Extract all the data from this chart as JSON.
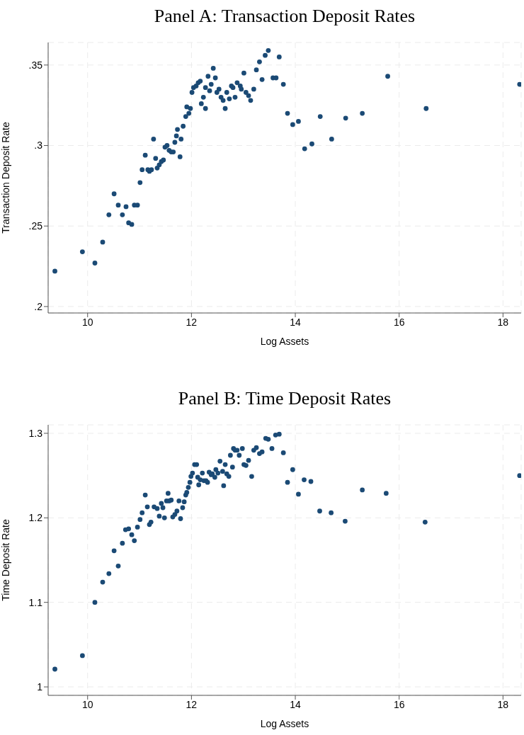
{
  "chart_data": [
    {
      "type": "scatter",
      "title": "Panel A: Transaction Deposit Rates",
      "xlabel": "Log Assets",
      "ylabel": "Transaction Deposit Rate",
      "grid": true,
      "marker": "circle",
      "xlim": [
        9.24,
        18.35
      ],
      "xticks": [
        10,
        12,
        14,
        16,
        18
      ],
      "ylim": [
        0.196,
        0.364
      ],
      "yticks": [
        {
          "value": 0.2,
          "label": ".2"
        },
        {
          "value": 0.25,
          "label": ".25"
        },
        {
          "value": 0.3,
          "label": ".3"
        },
        {
          "value": 0.35,
          "label": ".35"
        }
      ],
      "x": [
        9.37,
        9.9,
        10.14,
        10.29,
        10.41,
        10.51,
        10.59,
        10.67,
        10.74,
        10.79,
        10.85,
        10.9,
        10.96,
        11.01,
        11.05,
        11.11,
        11.16,
        11.19,
        11.23,
        11.27,
        11.31,
        11.34,
        11.38,
        11.42,
        11.46,
        11.49,
        11.53,
        11.57,
        11.61,
        11.65,
        11.68,
        11.71,
        11.73,
        11.78,
        11.8,
        11.84,
        11.89,
        11.91,
        11.95,
        11.98,
        12.01,
        12.04,
        12.09,
        12.13,
        12.17,
        12.19,
        12.23,
        12.27,
        12.27,
        12.32,
        12.35,
        12.38,
        12.42,
        12.46,
        12.49,
        12.53,
        12.57,
        12.61,
        12.65,
        12.68,
        12.73,
        12.77,
        12.8,
        12.84,
        12.88,
        12.94,
        12.96,
        13.01,
        13.05,
        13.1,
        13.14,
        13.2,
        13.25,
        13.31,
        13.36,
        13.42,
        13.48,
        13.57,
        13.63,
        13.69,
        13.77,
        13.85,
        13.95,
        14.06,
        14.18,
        14.32,
        14.48,
        14.7,
        14.97,
        15.29,
        15.78,
        16.52,
        18.32
      ],
      "series": [
        {
          "color": "#1b4a75",
          "values": [
            0.222,
            0.234,
            0.227,
            0.24,
            0.257,
            0.27,
            0.263,
            0.257,
            0.262,
            0.252,
            0.251,
            0.263,
            0.263,
            0.277,
            0.285,
            0.294,
            0.285,
            0.284,
            0.285,
            0.304,
            0.292,
            0.286,
            0.288,
            0.29,
            0.291,
            0.299,
            0.3,
            0.297,
            0.296,
            0.296,
            0.302,
            0.306,
            0.31,
            0.293,
            0.304,
            0.312,
            0.318,
            0.324,
            0.32,
            0.323,
            0.333,
            0.336,
            0.337,
            0.339,
            0.34,
            0.326,
            0.33,
            0.323,
            0.336,
            0.343,
            0.334,
            0.338,
            0.348,
            0.342,
            0.333,
            0.335,
            0.33,
            0.328,
            0.323,
            0.333,
            0.329,
            0.337,
            0.336,
            0.33,
            0.339,
            0.337,
            0.335,
            0.345,
            0.333,
            0.331,
            0.328,
            0.335,
            0.347,
            0.352,
            0.341,
            0.356,
            0.359,
            0.342,
            0.342,
            0.355,
            0.338,
            0.32,
            0.313,
            0.315,
            0.298,
            0.301,
            0.318,
            0.304,
            0.317,
            0.32,
            0.343,
            0.323,
            0.338
          ]
        }
      ]
    },
    {
      "type": "scatter",
      "title": "Panel B: Time Deposit Rates",
      "xlabel": "Log Assets",
      "ylabel": "Time Deposit Rate",
      "grid": true,
      "marker": "circle",
      "xlim": [
        9.24,
        18.35
      ],
      "xticks": [
        10,
        12,
        14,
        16,
        18
      ],
      "ylim": [
        0.99,
        1.31
      ],
      "yticks": [
        1,
        1.1,
        1.2,
        1.3
      ],
      "x": [
        9.37,
        9.9,
        10.14,
        10.29,
        10.41,
        10.51,
        10.59,
        10.67,
        10.73,
        10.79,
        10.85,
        10.9,
        10.96,
        11.01,
        11.05,
        11.11,
        11.15,
        11.19,
        11.22,
        11.28,
        11.34,
        11.38,
        11.42,
        11.45,
        11.48,
        11.52,
        11.55,
        11.57,
        11.61,
        11.64,
        11.68,
        11.72,
        11.76,
        11.79,
        11.83,
        11.86,
        11.89,
        11.91,
        11.94,
        11.97,
        11.99,
        12.02,
        12.06,
        12.1,
        12.12,
        12.14,
        12.17,
        12.21,
        12.24,
        12.28,
        12.31,
        12.34,
        12.38,
        12.4,
        12.45,
        12.47,
        12.51,
        12.55,
        12.6,
        12.62,
        12.65,
        12.68,
        12.72,
        12.75,
        12.79,
        12.81,
        12.84,
        12.88,
        12.92,
        12.98,
        13.01,
        13.05,
        13.1,
        13.16,
        13.2,
        13.25,
        13.31,
        13.36,
        13.43,
        13.48,
        13.55,
        13.62,
        13.69,
        13.77,
        13.85,
        13.95,
        14.06,
        14.17,
        14.3,
        14.47,
        14.69,
        14.96,
        15.29,
        15.75,
        16.5,
        18.32
      ],
      "series": [
        {
          "color": "#1b4a75",
          "values": [
            1.021,
            1.037,
            1.1,
            1.124,
            1.134,
            1.161,
            1.143,
            1.17,
            1.186,
            1.187,
            1.18,
            1.173,
            1.189,
            1.198,
            1.206,
            1.227,
            1.213,
            1.192,
            1.195,
            1.213,
            1.211,
            1.202,
            1.217,
            1.212,
            1.2,
            1.22,
            1.229,
            1.22,
            1.221,
            1.201,
            1.204,
            1.208,
            1.22,
            1.199,
            1.212,
            1.219,
            1.227,
            1.23,
            1.236,
            1.242,
            1.249,
            1.253,
            1.263,
            1.263,
            1.248,
            1.239,
            1.245,
            1.253,
            1.244,
            1.244,
            1.242,
            1.254,
            1.251,
            1.252,
            1.248,
            1.257,
            1.253,
            1.267,
            1.255,
            1.238,
            1.263,
            1.252,
            1.249,
            1.274,
            1.26,
            1.282,
            1.28,
            1.28,
            1.274,
            1.282,
            1.263,
            1.262,
            1.268,
            1.249,
            1.28,
            1.283,
            1.276,
            1.278,
            1.294,
            1.293,
            1.282,
            1.298,
            1.299,
            1.277,
            1.242,
            1.257,
            1.228,
            1.245,
            1.243,
            1.208,
            1.206,
            1.196,
            1.233,
            1.229,
            1.195,
            1.25
          ]
        }
      ]
    }
  ]
}
